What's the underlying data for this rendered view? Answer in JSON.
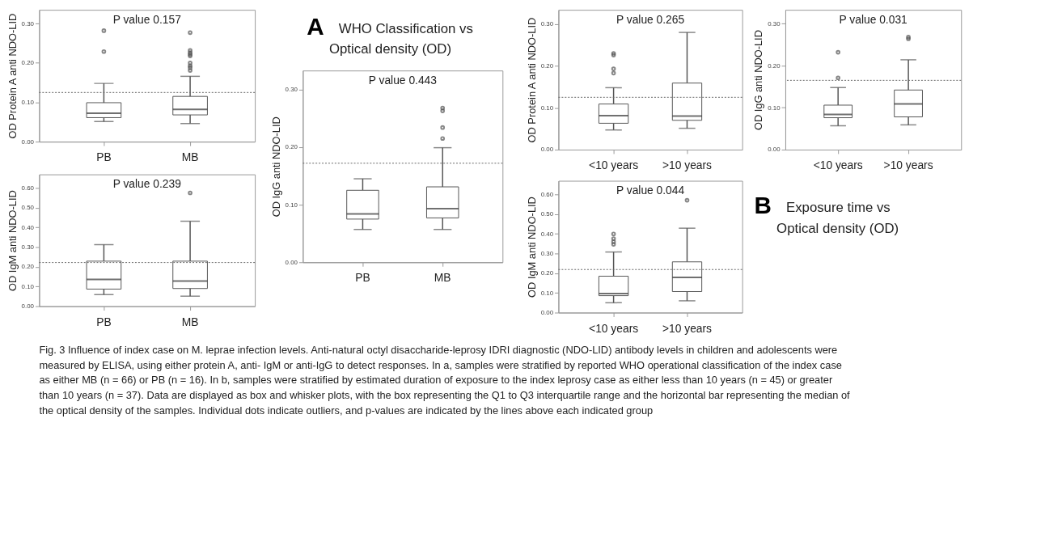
{
  "chart_data": [
    {
      "type": "box",
      "categories": [
        "PB",
        "MB"
      ],
      "ylabel": "OD Protein A anti NDO-LID",
      "ylim": [
        0,
        0.335
      ],
      "yticks": [
        {
          "value": 0,
          "label": "0.00"
        },
        {
          "value": 0.1,
          "label": "0.10"
        },
        {
          "value": 0.2,
          "label": "0.20"
        },
        {
          "value": 0.3,
          "label": "0.30"
        }
      ],
      "boxes": [
        {
          "low": 0.051,
          "q1": 0.061,
          "median": 0.072,
          "q3": 0.099,
          "high": 0.148,
          "outliers": [
            0.282,
            0.229
          ]
        },
        {
          "low": 0.046,
          "q1": 0.068,
          "median": 0.082,
          "q3": 0.115,
          "high": 0.166,
          "outliers": [
            0.277,
            0.232,
            0.226,
            0.222,
            0.218,
            0.2,
            0.193,
            0.188,
            0.181
          ]
        }
      ],
      "ref_lines": [
        {
          "axis": "y",
          "value": 0.125,
          "line_style": "dotted"
        }
      ],
      "annotations": [
        "P value 0.157"
      ]
    },
    {
      "type": "box",
      "categories": [
        "PB",
        "MB"
      ],
      "ylabel": "OD IgM anti NDO-LID",
      "ylim": [
        0,
        0.67
      ],
      "yticks": [
        {
          "value": 0,
          "label": "0.00"
        },
        {
          "value": 0.1,
          "label": "0.10"
        },
        {
          "value": 0.2,
          "label": "0.20"
        },
        {
          "value": 0.3,
          "label": "0.30"
        },
        {
          "value": 0.4,
          "label": "0.40"
        },
        {
          "value": 0.5,
          "label": "0.50"
        },
        {
          "value": 0.6,
          "label": "0.60"
        }
      ],
      "boxes": [
        {
          "low": 0.059,
          "q1": 0.087,
          "median": 0.136,
          "q3": 0.229,
          "high": 0.313
        },
        {
          "low": 0.051,
          "q1": 0.09,
          "median": 0.128,
          "q3": 0.229,
          "high": 0.432,
          "outliers": [
            0.576
          ]
        }
      ],
      "ref_lines": [
        {
          "axis": "y",
          "value": 0.222,
          "line_style": "dotted"
        }
      ],
      "annotations": [
        "P value 0.239"
      ]
    },
    {
      "type": "box",
      "categories": [
        "PB",
        "MB"
      ],
      "ylabel": "OD IgG anti NDO-LID",
      "ylim": [
        0,
        0.333
      ],
      "yticks": [
        {
          "value": 0,
          "label": "0.00"
        },
        {
          "value": 0.1,
          "label": "0.10"
        },
        {
          "value": 0.2,
          "label": "0.20"
        },
        {
          "value": 0.3,
          "label": "0.30"
        }
      ],
      "boxes": [
        {
          "low": 0.057,
          "q1": 0.075,
          "median": 0.084,
          "q3": 0.125,
          "high": 0.145
        },
        {
          "low": 0.057,
          "q1": 0.077,
          "median": 0.093,
          "q3": 0.131,
          "high": 0.199,
          "outliers": [
            0.268,
            0.263,
            0.234,
            0.215
          ]
        }
      ],
      "ref_lines": [
        {
          "axis": "y",
          "value": 0.172,
          "line_style": "dotted"
        }
      ],
      "annotations": [
        "P value 0.443"
      ]
    },
    {
      "type": "box",
      "categories": [
        "<10 years",
        ">10 years"
      ],
      "ylabel": "OD Protein A anti NDO-LID",
      "ylim": [
        0,
        0.334
      ],
      "yticks": [
        {
          "value": 0,
          "label": "0.00"
        },
        {
          "value": 0.1,
          "label": "0.10"
        },
        {
          "value": 0.2,
          "label": "0.20"
        },
        {
          "value": 0.3,
          "label": "0.30"
        }
      ],
      "boxes": [
        {
          "low": 0.047,
          "q1": 0.063,
          "median": 0.081,
          "q3": 0.109,
          "high": 0.148,
          "outliers": [
            0.23,
            0.226,
            0.193,
            0.183
          ]
        },
        {
          "low": 0.051,
          "q1": 0.07,
          "median": 0.08,
          "q3": 0.159,
          "high": 0.28
        }
      ],
      "ref_lines": [
        {
          "axis": "y",
          "value": 0.125,
          "line_style": "dotted"
        }
      ],
      "annotations": [
        "P value 0.265"
      ]
    },
    {
      "type": "box",
      "categories": [
        "<10 years",
        ">10 years"
      ],
      "ylabel": "OD IgG anti NDO-LID",
      "ylim": [
        0,
        0.333
      ],
      "yticks": [
        {
          "value": 0,
          "label": "0.00"
        },
        {
          "value": 0.1,
          "label": "0.10"
        },
        {
          "value": 0.2,
          "label": "0.20"
        },
        {
          "value": 0.3,
          "label": "0.30"
        }
      ],
      "boxes": [
        {
          "low": 0.057,
          "q1": 0.076,
          "median": 0.084,
          "q3": 0.106,
          "high": 0.148,
          "outliers": [
            0.232,
            0.171
          ]
        },
        {
          "low": 0.059,
          "q1": 0.078,
          "median": 0.109,
          "q3": 0.142,
          "high": 0.214,
          "outliers": [
            0.268,
            0.264
          ]
        }
      ],
      "ref_lines": [
        {
          "axis": "y",
          "value": 0.165,
          "line_style": "dotted"
        }
      ],
      "annotations": [
        "P value 0.031"
      ]
    },
    {
      "type": "box",
      "categories": [
        "<10 years",
        ">10 years"
      ],
      "ylabel": "OD IgM anti NDO-LID",
      "ylim": [
        0,
        0.67
      ],
      "yticks": [
        {
          "value": 0,
          "label": "0.00"
        },
        {
          "value": 0.1,
          "label": "0.10"
        },
        {
          "value": 0.2,
          "label": "0.20"
        },
        {
          "value": 0.3,
          "label": "0.30"
        },
        {
          "value": 0.4,
          "label": "0.40"
        },
        {
          "value": 0.5,
          "label": "0.50"
        },
        {
          "value": 0.6,
          "label": "0.60"
        }
      ],
      "boxes": [
        {
          "low": 0.05,
          "q1": 0.086,
          "median": 0.097,
          "q3": 0.185,
          "high": 0.308,
          "outliers": [
            0.4,
            0.376,
            0.36,
            0.347
          ]
        },
        {
          "low": 0.06,
          "q1": 0.107,
          "median": 0.179,
          "q3": 0.258,
          "high": 0.429,
          "outliers": [
            0.571
          ]
        }
      ],
      "ref_lines": [
        {
          "axis": "y",
          "value": 0.219,
          "line_style": "dotted"
        }
      ],
      "annotations": [
        "P value 0.044"
      ]
    },
    {
      "type": "other",
      "annotations": [
        "Fig. 3 Influence of index case on M. leprae infection levels. Anti-natural octyl disaccharide-leprosy IDRI diagnostic (NDO-LID) antibody levels in children and adolescents were measured by ELISA, using either protein A, anti- IgM or anti-IgG to detect responses. In a, samples were stratified by reported WHO operational classification of the index case as either MB (n = 66) or PB (n = 16). In b, samples were stratified by estimated duration of exposure to the index leprosy case as either less than 10 years (n = 45) or greater than 10 years (n = 37). Data are displayed as box and whisker plots, with the box representing the Q1 to Q3 interquartile range and the horizontal bar representing the median of the optical density of the samples. Individual dots indicate outliers, and p-values are indicated by the lines above each indicated group"
      ]
    },
    {
      "type": "other",
      "annotations": [
        "A",
        "WHO Classification vs Optical density (OD)"
      ]
    },
    {
      "type": "other",
      "annotations": [
        "B",
        "Exposure time vs Optical density (OD)"
      ]
    }
  ]
}
